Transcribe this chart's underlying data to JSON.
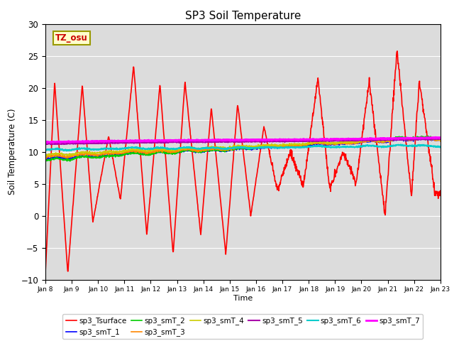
{
  "title": "SP3 Soil Temperature",
  "ylabel": "Soil Temperature (C)",
  "xlabel": "Time",
  "tz_label": "TZ_osu",
  "ylim": [
    -10,
    30
  ],
  "x_start": 8,
  "x_end": 23,
  "x_ticks": [
    8,
    9,
    10,
    11,
    12,
    13,
    14,
    15,
    16,
    17,
    18,
    19,
    20,
    21,
    22,
    23
  ],
  "x_tick_labels": [
    "Jan 8",
    "Jan 9",
    "Jan 10",
    "Jan 11",
    "Jan 12",
    "Jan 13",
    "Jan 14",
    "Jan 15",
    "Jan 16",
    "Jan 17",
    "Jan 18",
    "Jan 19",
    "Jan 20",
    "Jan 21",
    "Jan 22",
    "Jan 23"
  ],
  "bg_color": "#dcdcdc",
  "legend_entries": [
    {
      "label": "sp3_Tsurface",
      "color": "#ff0000",
      "lw": 1.2
    },
    {
      "label": "sp3_smT_1",
      "color": "#0000ff",
      "lw": 1.2
    },
    {
      "label": "sp3_smT_2",
      "color": "#00cc00",
      "lw": 1.2
    },
    {
      "label": "sp3_smT_3",
      "color": "#ff8800",
      "lw": 1.2
    },
    {
      "label": "sp3_smT_4",
      "color": "#cccc00",
      "lw": 1.2
    },
    {
      "label": "sp3_smT_5",
      "color": "#aa00aa",
      "lw": 1.5
    },
    {
      "label": "sp3_smT_6",
      "color": "#00cccc",
      "lw": 1.5
    },
    {
      "label": "sp3_smT_7",
      "color": "#ff00ff",
      "lw": 2.0
    }
  ]
}
